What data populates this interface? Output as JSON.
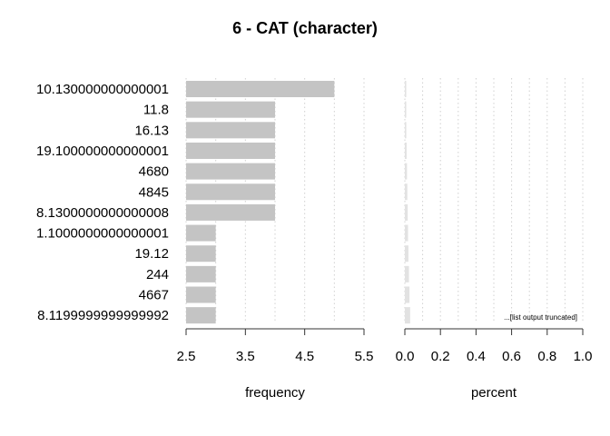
{
  "chart_data": {
    "type": "bar",
    "title": "6 - CAT (character)",
    "categories": [
      "10.130000000000001",
      "11.8",
      "16.13",
      "19.100000000000001",
      "4680",
      "4845",
      "8.1300000000000008",
      "1.1000000000000001",
      "19.12",
      "244",
      "4667",
      "8.1199999999999992"
    ],
    "panels": [
      {
        "name": "frequency",
        "xlabel": "frequency",
        "xlim": [
          2.5,
          5.5
        ],
        "ticks": [
          2.5,
          3.5,
          4.5,
          5.5
        ],
        "tick_labels": [
          "2.5",
          "3.5",
          "4.5",
          "5.5"
        ],
        "grid_values": [
          3,
          4,
          5
        ],
        "values": [
          5,
          4,
          4,
          4,
          4,
          4,
          4,
          3,
          3,
          3,
          3,
          3
        ],
        "bar_color": "#c4c4c4"
      },
      {
        "name": "percent",
        "xlabel": "percent",
        "xlim": [
          0,
          1
        ],
        "ticks": [
          0,
          0.2,
          0.4,
          0.6,
          0.8,
          1.0
        ],
        "tick_labels": [
          "0.0",
          "0.2",
          "0.4",
          "0.6",
          "0.8",
          "1.0"
        ],
        "grid_values": [
          0.1,
          0.3,
          0.5,
          0.7,
          0.9
        ],
        "values": [
          0.005,
          0.006,
          0.008,
          0.01,
          0.012,
          0.014,
          0.016,
          0.018,
          0.02,
          0.023,
          0.026,
          0.03
        ],
        "bar_color": "#e2e2e2",
        "annotation": "...[list output truncated]"
      }
    ],
    "grid": true,
    "grid_color": "#d0d0d0",
    "axis_color": "#333333"
  }
}
